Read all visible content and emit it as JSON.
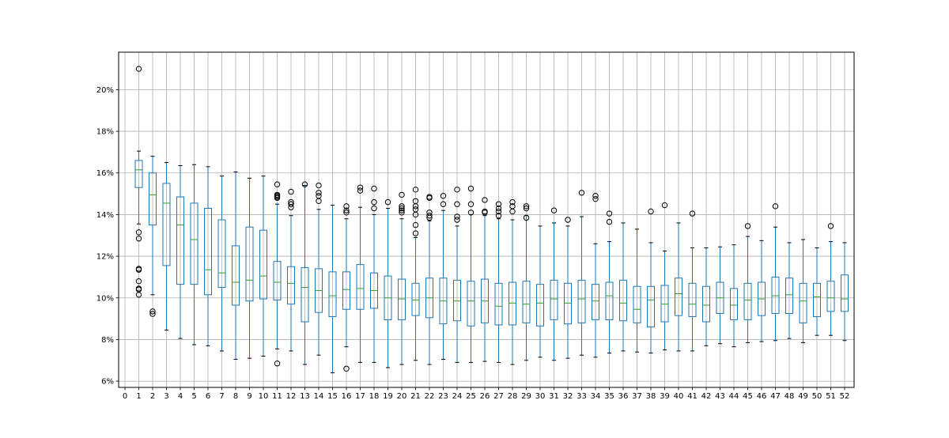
{
  "chart_data": {
    "type": "box",
    "title": "",
    "xlabel": "",
    "ylabel": "",
    "ylim": [
      0.057,
      0.218
    ],
    "yticks": [
      {
        "value": 0.06,
        "label": "6%"
      },
      {
        "value": 0.08,
        "label": "8%"
      },
      {
        "value": 0.1,
        "label": "10%"
      },
      {
        "value": 0.12,
        "label": "12%"
      },
      {
        "value": 0.14,
        "label": "14%"
      },
      {
        "value": 0.16,
        "label": "16%"
      },
      {
        "value": 0.18,
        "label": "18%"
      },
      {
        "value": 0.2,
        "label": "20%"
      }
    ],
    "categories": [
      "0",
      "1",
      "2",
      "3",
      "4",
      "5",
      "6",
      "7",
      "8",
      "9",
      "10",
      "11",
      "12",
      "13",
      "14",
      "15",
      "16",
      "17",
      "18",
      "19",
      "20",
      "21",
      "22",
      "23",
      "24",
      "25",
      "26",
      "27",
      "28",
      "29",
      "30",
      "31",
      "32",
      "33",
      "34",
      "35",
      "36",
      "37",
      "38",
      "39",
      "40",
      "41",
      "42",
      "43",
      "44",
      "45",
      "46",
      "47",
      "48",
      "49",
      "50",
      "51",
      "52"
    ],
    "grid": true,
    "colors": {
      "box": "#1f77b4",
      "median": "#2ca02c",
      "grid": "#b0b0b0",
      "outlier": "#000000"
    },
    "boxes": [
      {
        "label": "1",
        "whislo": 0.1355,
        "q1": 0.153,
        "med": 0.1615,
        "q3": 0.166,
        "whishi": 0.1705,
        "fliers": [
          0.21,
          0.1315,
          0.1285,
          0.114,
          0.1135,
          0.108,
          0.1045,
          0.104,
          0.1015
        ]
      },
      {
        "label": "2",
        "whislo": 0.1015,
        "q1": 0.135,
        "med": 0.1495,
        "q3": 0.16,
        "whishi": 0.168,
        "fliers": [
          0.0935,
          0.0923
        ]
      },
      {
        "label": "3",
        "whislo": 0.0845,
        "q1": 0.1155,
        "med": 0.1455,
        "q3": 0.155,
        "whishi": 0.165,
        "fliers": []
      },
      {
        "label": "4",
        "whislo": 0.0805,
        "q1": 0.1065,
        "med": 0.135,
        "q3": 0.1485,
        "whishi": 0.1635,
        "fliers": []
      },
      {
        "label": "5",
        "whislo": 0.0775,
        "q1": 0.1065,
        "med": 0.128,
        "q3": 0.1455,
        "whishi": 0.164,
        "fliers": []
      },
      {
        "label": "6",
        "whislo": 0.077,
        "q1": 0.1015,
        "med": 0.1135,
        "q3": 0.143,
        "whishi": 0.163,
        "fliers": []
      },
      {
        "label": "7",
        "whislo": 0.0745,
        "q1": 0.105,
        "med": 0.112,
        "q3": 0.1375,
        "whishi": 0.1585,
        "fliers": []
      },
      {
        "label": "8",
        "whislo": 0.0705,
        "q1": 0.0965,
        "med": 0.1075,
        "q3": 0.125,
        "whishi": 0.1605,
        "fliers": []
      },
      {
        "label": "9",
        "whislo": 0.071,
        "q1": 0.0985,
        "med": 0.1085,
        "q3": 0.134,
        "whishi": 0.1575,
        "fliers": []
      },
      {
        "label": "10",
        "whislo": 0.072,
        "q1": 0.0995,
        "med": 0.1105,
        "q3": 0.1325,
        "whishi": 0.1585,
        "fliers": []
      },
      {
        "label": "11",
        "whislo": 0.0755,
        "q1": 0.099,
        "med": 0.1075,
        "q3": 0.1175,
        "whishi": 0.145,
        "fliers": [
          0.1545,
          0.1495,
          0.149,
          0.1485,
          0.148,
          0.0685
        ]
      },
      {
        "label": "12",
        "whislo": 0.0745,
        "q1": 0.097,
        "med": 0.107,
        "q3": 0.115,
        "whishi": 0.1395,
        "fliers": [
          0.151,
          0.146,
          0.145,
          0.1435
        ]
      },
      {
        "label": "13",
        "whislo": 0.068,
        "q1": 0.0885,
        "med": 0.105,
        "q3": 0.1145,
        "whishi": 0.154,
        "fliers": [
          0.1545
        ]
      },
      {
        "label": "14",
        "whislo": 0.0725,
        "q1": 0.093,
        "med": 0.1035,
        "q3": 0.114,
        "whishi": 0.1425,
        "fliers": [
          0.154,
          0.1505,
          0.149,
          0.1465
        ]
      },
      {
        "label": "15",
        "whislo": 0.064,
        "q1": 0.091,
        "med": 0.101,
        "q3": 0.1125,
        "whishi": 0.1445,
        "fliers": []
      },
      {
        "label": "16",
        "whislo": 0.0765,
        "q1": 0.0945,
        "med": 0.104,
        "q3": 0.1125,
        "whishi": 0.138,
        "fliers": [
          0.144,
          0.142,
          0.141,
          0.066
        ]
      },
      {
        "label": "17",
        "whislo": 0.069,
        "q1": 0.0945,
        "med": 0.1045,
        "q3": 0.116,
        "whishi": 0.1435,
        "fliers": [
          0.153,
          0.1515
        ]
      },
      {
        "label": "18",
        "whislo": 0.069,
        "q1": 0.095,
        "med": 0.1035,
        "q3": 0.112,
        "whishi": 0.14,
        "fliers": [
          0.1525,
          0.146,
          0.143
        ]
      },
      {
        "label": "19",
        "whislo": 0.0665,
        "q1": 0.0895,
        "med": 0.1,
        "q3": 0.1105,
        "whishi": 0.143,
        "fliers": [
          0.146
        ]
      },
      {
        "label": "20",
        "whislo": 0.068,
        "q1": 0.0895,
        "med": 0.0995,
        "q3": 0.109,
        "whishi": 0.138,
        "fliers": [
          0.1495,
          0.144,
          0.143,
          0.142,
          0.141
        ]
      },
      {
        "label": "21",
        "whislo": 0.07,
        "q1": 0.0915,
        "med": 0.099,
        "q3": 0.107,
        "whishi": 0.129,
        "fliers": [
          0.152,
          0.1465,
          0.144,
          0.1425,
          0.14,
          0.135,
          0.131
        ]
      },
      {
        "label": "22",
        "whislo": 0.068,
        "q1": 0.0905,
        "med": 0.1,
        "q3": 0.1095,
        "whishi": 0.137,
        "fliers": [
          0.1485,
          0.148,
          0.141,
          0.1395,
          0.1385
        ]
      },
      {
        "label": "23",
        "whislo": 0.0705,
        "q1": 0.0875,
        "med": 0.0985,
        "q3": 0.1095,
        "whishi": 0.142,
        "fliers": [
          0.149,
          0.145
        ]
      },
      {
        "label": "24",
        "whislo": 0.069,
        "q1": 0.089,
        "med": 0.0985,
        "q3": 0.1085,
        "whishi": 0.1345,
        "fliers": [
          0.152,
          0.145,
          0.139,
          0.1375
        ]
      },
      {
        "label": "25",
        "whislo": 0.069,
        "q1": 0.0865,
        "med": 0.0985,
        "q3": 0.108,
        "whishi": 0.14,
        "fliers": [
          0.1525,
          0.145,
          0.141
        ]
      },
      {
        "label": "26",
        "whislo": 0.0695,
        "q1": 0.088,
        "med": 0.0985,
        "q3": 0.109,
        "whishi": 0.1395,
        "fliers": [
          0.147,
          0.1415,
          0.141
        ]
      },
      {
        "label": "27",
        "whislo": 0.069,
        "q1": 0.087,
        "med": 0.096,
        "q3": 0.107,
        "whishi": 0.138,
        "fliers": [
          0.145,
          0.143,
          0.1415,
          0.1395
        ]
      },
      {
        "label": "28",
        "whislo": 0.068,
        "q1": 0.087,
        "med": 0.0975,
        "q3": 0.1075,
        "whishi": 0.1375,
        "fliers": [
          0.146,
          0.144,
          0.1415
        ]
      },
      {
        "label": "29",
        "whislo": 0.07,
        "q1": 0.088,
        "med": 0.097,
        "q3": 0.108,
        "whishi": 0.1395,
        "fliers": [
          0.144,
          0.143,
          0.1385
        ]
      },
      {
        "label": "30",
        "whislo": 0.0715,
        "q1": 0.0865,
        "med": 0.0975,
        "q3": 0.1065,
        "whishi": 0.1345,
        "fliers": []
      },
      {
        "label": "31",
        "whislo": 0.07,
        "q1": 0.0895,
        "med": 0.0995,
        "q3": 0.1085,
        "whishi": 0.136,
        "fliers": [
          0.142
        ]
      },
      {
        "label": "32",
        "whislo": 0.071,
        "q1": 0.0875,
        "med": 0.0975,
        "q3": 0.107,
        "whishi": 0.1345,
        "fliers": [
          0.1375
        ]
      },
      {
        "label": "33",
        "whislo": 0.0725,
        "q1": 0.088,
        "med": 0.0995,
        "q3": 0.1085,
        "whishi": 0.139,
        "fliers": [
          0.1505
        ]
      },
      {
        "label": "34",
        "whislo": 0.0715,
        "q1": 0.0895,
        "med": 0.0985,
        "q3": 0.1065,
        "whishi": 0.126,
        "fliers": [
          0.149,
          0.1475
        ]
      },
      {
        "label": "35",
        "whislo": 0.0735,
        "q1": 0.0895,
        "med": 0.101,
        "q3": 0.1075,
        "whishi": 0.127,
        "fliers": [
          0.1405,
          0.1365
        ]
      },
      {
        "label": "36",
        "whislo": 0.0745,
        "q1": 0.089,
        "med": 0.0975,
        "q3": 0.1085,
        "whishi": 0.136,
        "fliers": []
      },
      {
        "label": "37",
        "whislo": 0.074,
        "q1": 0.088,
        "med": 0.0945,
        "q3": 0.1055,
        "whishi": 0.133,
        "fliers": []
      },
      {
        "label": "38",
        "whislo": 0.0735,
        "q1": 0.086,
        "med": 0.099,
        "q3": 0.1055,
        "whishi": 0.1265,
        "fliers": [
          0.1415
        ]
      },
      {
        "label": "39",
        "whislo": 0.075,
        "q1": 0.0885,
        "med": 0.097,
        "q3": 0.106,
        "whishi": 0.1225,
        "fliers": [
          0.1445
        ]
      },
      {
        "label": "40",
        "whislo": 0.0745,
        "q1": 0.0915,
        "med": 0.102,
        "q3": 0.1095,
        "whishi": 0.136,
        "fliers": []
      },
      {
        "label": "41",
        "whislo": 0.0745,
        "q1": 0.091,
        "med": 0.097,
        "q3": 0.107,
        "whishi": 0.124,
        "fliers": [
          0.1405
        ]
      },
      {
        "label": "42",
        "whislo": 0.077,
        "q1": 0.0885,
        "med": 0.0965,
        "q3": 0.1055,
        "whishi": 0.124,
        "fliers": []
      },
      {
        "label": "43",
        "whislo": 0.078,
        "q1": 0.0925,
        "med": 0.1,
        "q3": 0.1075,
        "whishi": 0.1245,
        "fliers": []
      },
      {
        "label": "44",
        "whislo": 0.0765,
        "q1": 0.0895,
        "med": 0.0965,
        "q3": 0.1045,
        "whishi": 0.1255,
        "fliers": []
      },
      {
        "label": "45",
        "whislo": 0.0785,
        "q1": 0.0895,
        "med": 0.099,
        "q3": 0.107,
        "whishi": 0.1295,
        "fliers": [
          0.1345
        ]
      },
      {
        "label": "46",
        "whislo": 0.079,
        "q1": 0.0915,
        "med": 0.0995,
        "q3": 0.1075,
        "whishi": 0.1275,
        "fliers": []
      },
      {
        "label": "47",
        "whislo": 0.0795,
        "q1": 0.0925,
        "med": 0.101,
        "q3": 0.11,
        "whishi": 0.134,
        "fliers": [
          0.144
        ]
      },
      {
        "label": "48",
        "whislo": 0.0805,
        "q1": 0.0925,
        "med": 0.1015,
        "q3": 0.1095,
        "whishi": 0.1265,
        "fliers": []
      },
      {
        "label": "49",
        "whislo": 0.0785,
        "q1": 0.088,
        "med": 0.0985,
        "q3": 0.107,
        "whishi": 0.128,
        "fliers": []
      },
      {
        "label": "50",
        "whislo": 0.082,
        "q1": 0.091,
        "med": 0.1005,
        "q3": 0.107,
        "whishi": 0.124,
        "fliers": []
      },
      {
        "label": "51",
        "whislo": 0.082,
        "q1": 0.0935,
        "med": 0.1,
        "q3": 0.108,
        "whishi": 0.127,
        "fliers": [
          0.1345
        ]
      },
      {
        "label": "52",
        "whislo": 0.0795,
        "q1": 0.0935,
        "med": 0.0995,
        "q3": 0.111,
        "whishi": 0.1265,
        "fliers": []
      }
    ]
  }
}
